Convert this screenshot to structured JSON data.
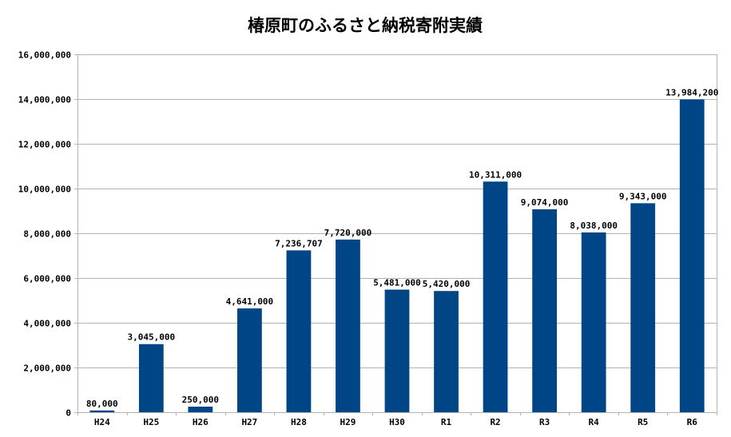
{
  "chart_data": {
    "type": "bar",
    "title": "椿原町のふるさと納税寄附実績",
    "xlabel": "",
    "ylabel": "",
    "categories": [
      "H24",
      "H25",
      "H26",
      "H27",
      "H28",
      "H29",
      "H30",
      "R1",
      "R2",
      "R3",
      "R4",
      "R5",
      "R6"
    ],
    "values": [
      80000,
      3045000,
      250000,
      4641000,
      7236707,
      7720000,
      5481000,
      5420000,
      10311000,
      9074000,
      8038000,
      9343000,
      13984200
    ],
    "data_labels": [
      "80,000",
      "3,045,000",
      "250,000",
      "4,641,000",
      "7,236,707",
      "7,720,000",
      "5,481,000",
      "5,420,000",
      "10,311,000",
      "9,074,000",
      "8,038,000",
      "9,343,000",
      "13,984,200"
    ],
    "ylim": [
      0,
      16000000
    ],
    "yticks": [
      "0",
      "2,000,000",
      "4,000,000",
      "6,000,000",
      "8,000,000",
      "10,000,000",
      "12,000,000",
      "14,000,000",
      "16,000,000"
    ],
    "grid": true,
    "legend": "none",
    "bar_color": "#004586",
    "grid_color": "#b3b3b3"
  }
}
